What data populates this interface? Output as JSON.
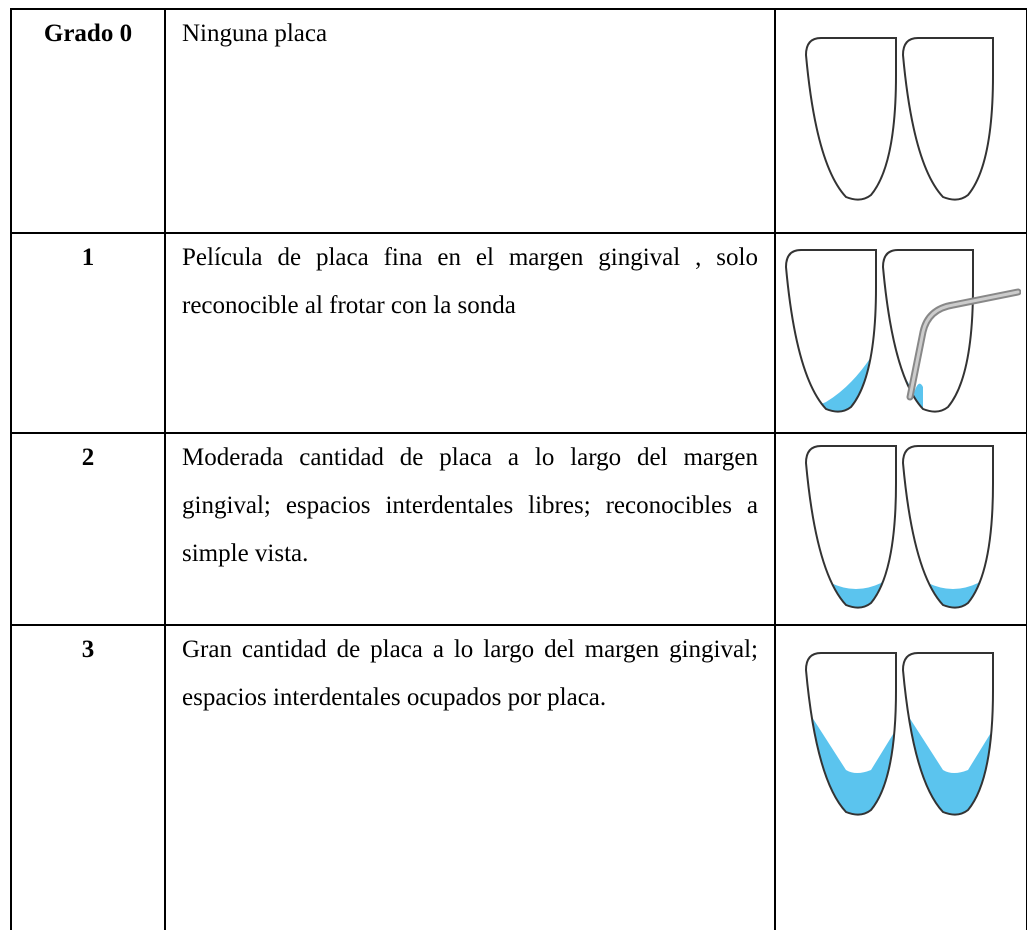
{
  "table": {
    "rows": [
      [
        "Grado 0",
        "Ninguna placa"
      ],
      [
        "1",
        "Película de placa fina en el margen gingival , solo reconocible al frotar con la sonda"
      ],
      [
        "2",
        "Moderada cantidad de placa a lo largo del margen gingival; espacios interdentales libres; reconocibles a simple vista."
      ],
      [
        "3",
        "Gran cantidad de placa a lo largo del margen gingival; espacios interdentales ocupados por placa."
      ]
    ]
  }
}
